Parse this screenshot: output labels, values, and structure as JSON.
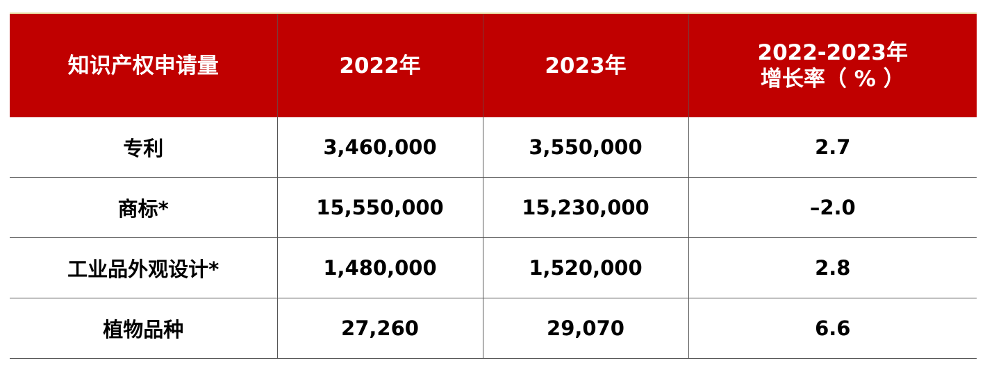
{
  "chart_data": {
    "type": "table",
    "columns": [
      {
        "label": "知识产权申请量",
        "lines": [
          "知识产权申请量"
        ]
      },
      {
        "label": "2022年",
        "lines": [
          "2022年"
        ]
      },
      {
        "label": "2023年",
        "lines": [
          "2023年"
        ]
      },
      {
        "label": "2022-2023年增长率（%）",
        "lines": [
          "2022-2023年",
          "增长率（ % ）"
        ]
      }
    ],
    "rows": [
      {
        "category": "专利",
        "y2022": "3,460,000",
        "y2023": "3,550,000",
        "growth": "2.7"
      },
      {
        "category": "商标*",
        "y2022": "15,550,000",
        "y2023": "15,230,000",
        "growth": "–2.0"
      },
      {
        "category": "工业品外观设计*",
        "y2022": "1,480,000",
        "y2023": "1,520,000",
        "growth": "2.8"
      },
      {
        "category": "植物品种",
        "y2022": "27,260",
        "y2023": "29,070",
        "growth": "6.6"
      }
    ],
    "values": {
      "y2022": [
        3460000,
        15550000,
        1480000,
        27260
      ],
      "y2023": [
        3550000,
        15230000,
        1520000,
        29070
      ],
      "growth_pct": [
        2.7,
        -2.0,
        2.8,
        6.6
      ]
    }
  },
  "colors": {
    "header_bg": "#c00000",
    "header_text": "#ffffff",
    "body_text": "#000000",
    "grid": "#555555"
  }
}
